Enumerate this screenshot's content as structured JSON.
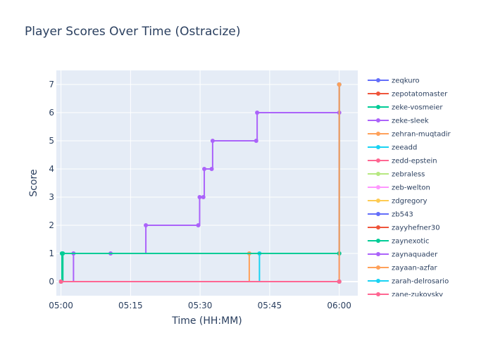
{
  "chart_data": {
    "type": "line",
    "title": "Player Scores Over Time (Ostracize)",
    "xlabel": "Time (HH:MM)",
    "ylabel": "Score",
    "x_ticks": [
      "05:00",
      "05:15",
      "05:30",
      "05:45",
      "06:00"
    ],
    "x_tick_minutes": [
      0,
      15,
      30,
      45,
      60
    ],
    "xlim_minutes": [
      -1,
      64
    ],
    "y_ticks": [
      "0",
      "1",
      "2",
      "3",
      "4",
      "5",
      "6",
      "7"
    ],
    "ylim": [
      -0.5,
      7.5
    ],
    "grid": true,
    "legend_position": "right",
    "plot_bg": "#e5ecf6",
    "series": [
      {
        "name": "zeqkuro",
        "color": "#636efa",
        "points": [
          [
            0,
            0
          ],
          [
            60,
            0
          ]
        ]
      },
      {
        "name": "zepotatomaster",
        "color": "#EF553B",
        "points": [
          [
            0,
            0
          ],
          [
            60,
            0
          ]
        ]
      },
      {
        "name": "zeke-vosmeier",
        "color": "#00cc96",
        "points": [
          [
            0,
            0
          ],
          [
            0.2,
            1
          ],
          [
            60,
            1
          ],
          [
            60,
            7
          ]
        ]
      },
      {
        "name": "zeke-sleek",
        "color": "#ab63fa",
        "points": [
          [
            0,
            0
          ],
          [
            2.7,
            1
          ],
          [
            10.7,
            1
          ],
          [
            18.3,
            2
          ],
          [
            29.6,
            2
          ],
          [
            29.9,
            3
          ],
          [
            30.7,
            3
          ],
          [
            30.9,
            4
          ],
          [
            32.5,
            4
          ],
          [
            32.7,
            5
          ],
          [
            42.1,
            5
          ],
          [
            42.3,
            6
          ],
          [
            60,
            6
          ],
          [
            60,
            7
          ]
        ]
      },
      {
        "name": "zehran-muqtadir",
        "color": "#FFA15A",
        "points": [
          [
            0,
            0
          ],
          [
            40.6,
            1
          ],
          [
            60,
            1
          ],
          [
            60,
            7
          ]
        ]
      },
      {
        "name": "zeeadd",
        "color": "#19d3f3",
        "points": [
          [
            0,
            0
          ],
          [
            42.8,
            1
          ],
          [
            60,
            1
          ],
          [
            60,
            7
          ]
        ]
      },
      {
        "name": "zedd-epstein",
        "color": "#FF6692",
        "points": [
          [
            0,
            0
          ],
          [
            60,
            0
          ]
        ]
      },
      {
        "name": "zebraless",
        "color": "#B6E880",
        "points": [
          [
            0,
            0
          ],
          [
            60,
            0
          ]
        ]
      },
      {
        "name": "zeb-welton",
        "color": "#FF97FF",
        "points": [
          [
            0,
            0
          ],
          [
            60,
            0
          ]
        ]
      },
      {
        "name": "zdgregory",
        "color": "#FECB52",
        "points": [
          [
            0,
            0
          ],
          [
            60,
            0
          ]
        ]
      },
      {
        "name": "zb543",
        "color": "#636efa",
        "points": [
          [
            0,
            0
          ],
          [
            60,
            0
          ]
        ]
      },
      {
        "name": "zayyhefner30",
        "color": "#EF553B",
        "points": [
          [
            0,
            0
          ],
          [
            60,
            0
          ]
        ]
      },
      {
        "name": "zaynexotic",
        "color": "#00cc96",
        "points": [
          [
            0,
            0
          ],
          [
            0.4,
            1
          ],
          [
            60,
            1
          ],
          [
            60,
            7
          ]
        ]
      },
      {
        "name": "zaynaquader",
        "color": "#ab63fa",
        "points": [
          [
            0,
            0
          ],
          [
            60,
            0
          ],
          [
            60,
            7
          ]
        ]
      },
      {
        "name": "zayaan-azfar",
        "color": "#FFA15A",
        "points": [
          [
            0,
            0
          ],
          [
            60,
            0
          ],
          [
            60,
            7
          ]
        ]
      },
      {
        "name": "zarah-delrosario",
        "color": "#19d3f3",
        "points": [
          [
            0,
            0
          ],
          [
            60,
            0
          ]
        ]
      },
      {
        "name": "zane-zukovsky",
        "color": "#FF6692",
        "points": [
          [
            0,
            0
          ],
          [
            60,
            0
          ]
        ]
      }
    ]
  }
}
